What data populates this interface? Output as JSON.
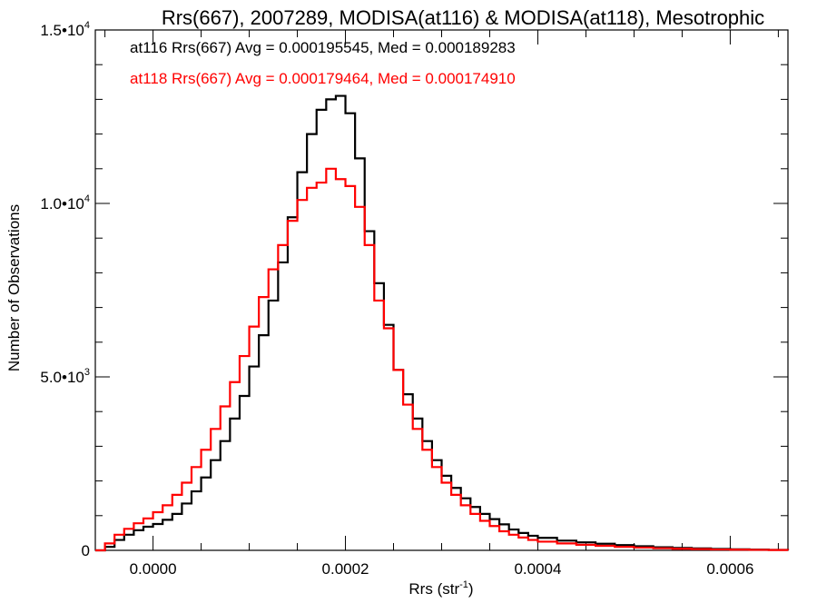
{
  "chart_data": {
    "type": "line",
    "title": "Rrs(667), 2007289, MODISA(at116) & MODISA(at118), Mesotrophic",
    "xlabel": "Rrs (str",
    "xlabel_sup": "-1",
    "xlabel_close": ")",
    "ylabel": "Number of Observations",
    "xlim": [
      -6e-05,
      0.00066
    ],
    "ylim": [
      0,
      15000
    ],
    "xticks": [
      {
        "value": 0.0,
        "label": "0.0000"
      },
      {
        "value": 0.0002,
        "label": "0.0002"
      },
      {
        "value": 0.0004,
        "label": "0.0004"
      },
      {
        "value": 0.0006,
        "label": "0.0006"
      }
    ],
    "yticks": [
      {
        "value": 0,
        "label": "0",
        "sup": ""
      },
      {
        "value": 5000,
        "label": "5.0•10",
        "sup": "3"
      },
      {
        "value": 10000,
        "label": "1.0•10",
        "sup": "4"
      },
      {
        "value": 15000,
        "label": "1.5•10",
        "sup": "4"
      }
    ],
    "grid": false,
    "series": [
      {
        "name": "at116",
        "color": "#000000",
        "stats_text": "at116 Rrs(667) Avg = 0.000195545, Med = 0.000189283",
        "x": [
          -6e-05,
          -5e-05,
          -4e-05,
          -3e-05,
          -2e-05,
          -1e-05,
          0.0,
          1e-05,
          2e-05,
          3e-05,
          4e-05,
          5e-05,
          6e-05,
          7e-05,
          8e-05,
          9e-05,
          0.0001,
          0.00011,
          0.00012,
          0.00013,
          0.00014,
          0.00015,
          0.00016,
          0.00017,
          0.00018,
          0.00019,
          0.0002,
          0.00021,
          0.00022,
          0.00023,
          0.00024,
          0.00025,
          0.00026,
          0.00027,
          0.00028,
          0.00029,
          0.0003,
          0.00031,
          0.00032,
          0.00033,
          0.00034,
          0.00035,
          0.00036,
          0.00037,
          0.00038,
          0.00039,
          0.0004,
          0.00042,
          0.00044,
          0.00046,
          0.00048,
          0.0005,
          0.00052,
          0.00054,
          0.00056,
          0.00058,
          0.0006,
          0.00062,
          0.00064,
          0.00066
        ],
        "y": [
          0,
          100,
          300,
          450,
          580,
          680,
          760,
          880,
          1050,
          1350,
          1700,
          2100,
          2600,
          3150,
          3800,
          4450,
          5300,
          6200,
          7200,
          8300,
          9600,
          10900,
          12000,
          12700,
          13000,
          13100,
          12600,
          11300,
          9200,
          7700,
          6500,
          5200,
          4500,
          3800,
          3150,
          2600,
          2150,
          1800,
          1500,
          1250,
          1050,
          900,
          750,
          600,
          500,
          420,
          360,
          280,
          230,
          190,
          150,
          120,
          90,
          70,
          55,
          40,
          30,
          20,
          15,
          10
        ]
      },
      {
        "name": "at118",
        "color": "#ff0000",
        "stats_text": "at118 Rrs(667) Avg = 0.000179464, Med = 0.000174910",
        "x": [
          -6e-05,
          -5e-05,
          -4e-05,
          -3e-05,
          -2e-05,
          -1e-05,
          0.0,
          1e-05,
          2e-05,
          3e-05,
          4e-05,
          5e-05,
          6e-05,
          7e-05,
          8e-05,
          9e-05,
          0.0001,
          0.00011,
          0.00012,
          0.00013,
          0.00014,
          0.00015,
          0.00016,
          0.00017,
          0.00018,
          0.00019,
          0.0002,
          0.00021,
          0.00022,
          0.00023,
          0.00024,
          0.00025,
          0.00026,
          0.00027,
          0.00028,
          0.00029,
          0.0003,
          0.00031,
          0.00032,
          0.00033,
          0.00034,
          0.00035,
          0.00036,
          0.00037,
          0.00038,
          0.00039,
          0.0004,
          0.00042,
          0.00044,
          0.00046,
          0.00048,
          0.0005,
          0.00052,
          0.00054,
          0.00056,
          0.00058,
          0.0006,
          0.00062,
          0.00064,
          0.00066
        ],
        "y": [
          0,
          200,
          450,
          620,
          780,
          920,
          1100,
          1300,
          1600,
          1950,
          2400,
          2900,
          3500,
          4150,
          4850,
          5600,
          6450,
          7300,
          8100,
          8800,
          9500,
          10100,
          10450,
          10600,
          11000,
          10700,
          10500,
          9900,
          8800,
          7200,
          6400,
          5200,
          4200,
          3500,
          2900,
          2400,
          1950,
          1600,
          1300,
          1050,
          850,
          700,
          550,
          450,
          370,
          300,
          250,
          200,
          160,
          130,
          100,
          80,
          60,
          45,
          35,
          25,
          20,
          15,
          10,
          5
        ]
      }
    ]
  }
}
